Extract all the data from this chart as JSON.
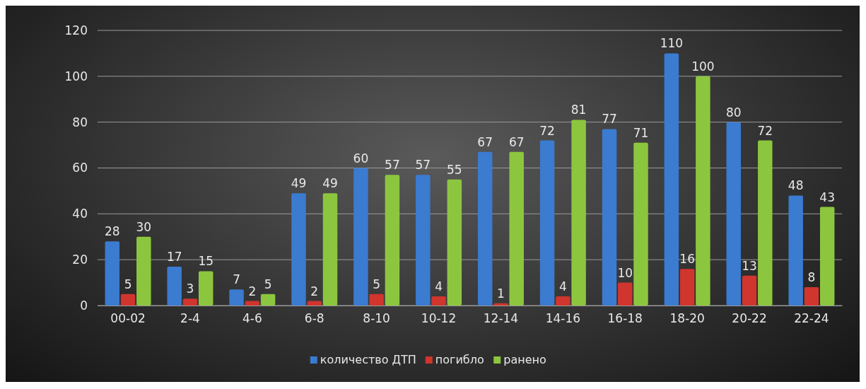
{
  "chart_data": {
    "type": "bar",
    "categories": [
      "00-02",
      "2-4",
      "4-6",
      "6-8",
      "8-10",
      "10-12",
      "12-14",
      "14-16",
      "16-18",
      "18-20",
      "20-22",
      "22-24"
    ],
    "series": [
      {
        "name": "количество ДТП",
        "color": "#3b7bd0",
        "values": [
          28,
          17,
          7,
          49,
          60,
          57,
          67,
          72,
          77,
          110,
          80,
          48
        ]
      },
      {
        "name": "погибло",
        "color": "#d0352e",
        "values": [
          5,
          3,
          2,
          2,
          5,
          4,
          1,
          4,
          10,
          16,
          13,
          8
        ]
      },
      {
        "name": "ранено",
        "color": "#8cc63f",
        "values": [
          30,
          15,
          5,
          49,
          57,
          55,
          67,
          81,
          71,
          100,
          72,
          43
        ]
      }
    ],
    "ylim": [
      0,
      120
    ],
    "yticks": [
      0,
      20,
      40,
      60,
      80,
      100,
      120
    ],
    "grid": "y",
    "legend": "bottom",
    "data_labels": true
  }
}
